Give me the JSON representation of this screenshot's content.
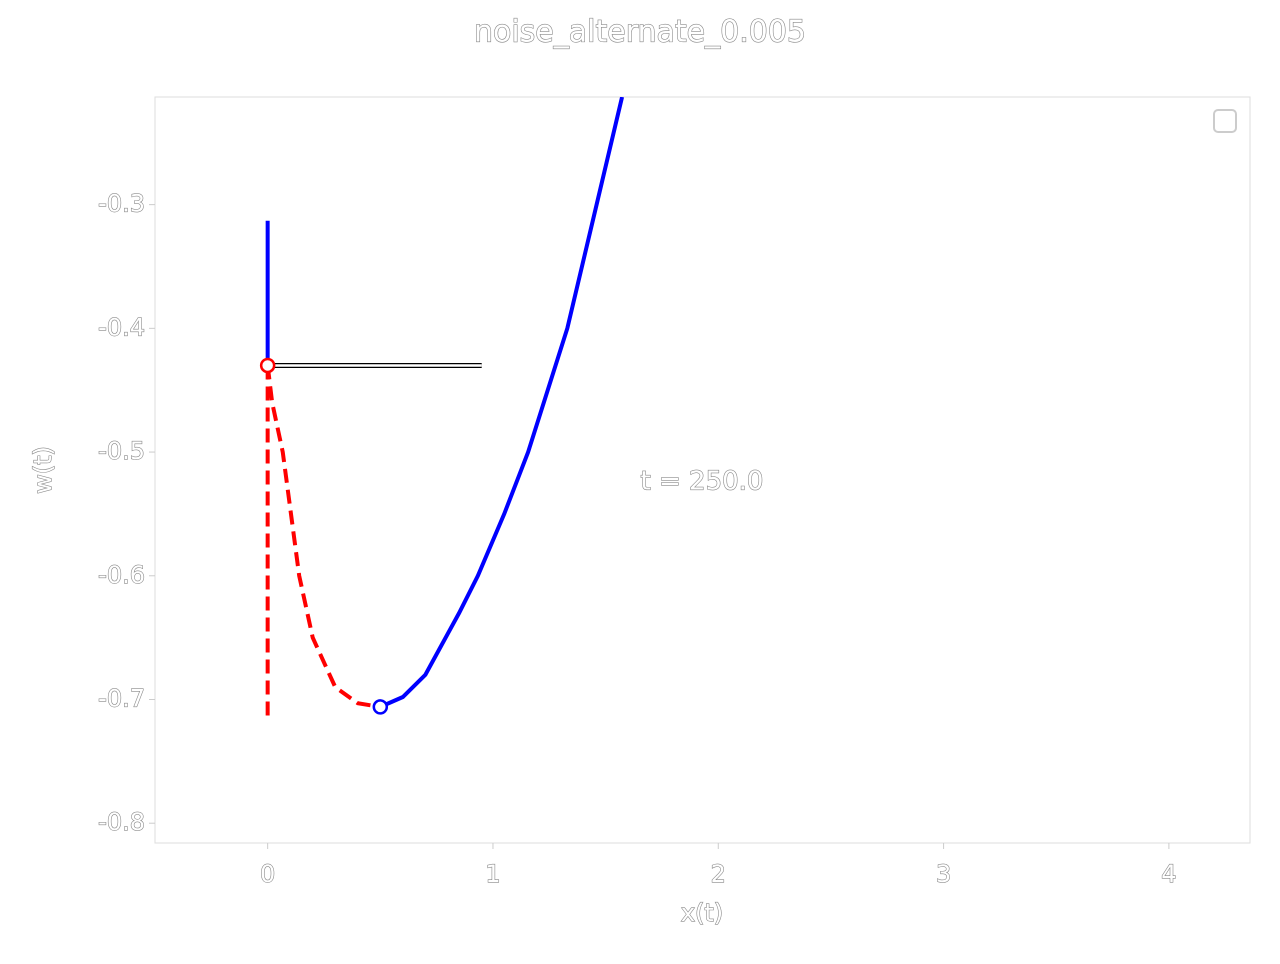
{
  "chart_data": {
    "type": "line",
    "title": "noise_alternate_0.005",
    "x_label": "x(t)",
    "y_label": "w(t)",
    "annotation": "t = 250.0",
    "xlim": [
      -0.5,
      4.36
    ],
    "ylim": [
      -0.816,
      -0.213
    ],
    "xticks": [
      0,
      1,
      2,
      3,
      4
    ],
    "yticks": [
      -0.3,
      -0.4,
      -0.5,
      -0.6,
      -0.7,
      -0.8
    ],
    "series": [
      {
        "color": "#0000ff",
        "dashed": false,
        "x": [
          0.5,
          0.6,
          0.7,
          0.76,
          0.85,
          0.933,
          1.05,
          1.156,
          1.33,
          1.46,
          1.573
        ],
        "values": [
          -0.706,
          -0.698,
          -0.68,
          -0.66,
          -0.63,
          -0.6,
          -0.55,
          -0.5,
          -0.4,
          -0.3,
          -0.213
        ]
      },
      {
        "color": "#0000ff",
        "dashed": false,
        "x": [
          0,
          0
        ],
        "values": [
          -0.313,
          -0.43
        ]
      },
      {
        "color": "#ff0000",
        "dashed": true,
        "x": [
          0,
          0.02,
          0.067,
          0.14,
          0.2,
          0.3,
          0.4,
          0.5
        ],
        "values": [
          -0.43,
          -0.46,
          -0.5,
          -0.6,
          -0.65,
          -0.69,
          -0.703,
          -0.706
        ]
      },
      {
        "color": "#ff0000",
        "dashed": true,
        "x": [
          0,
          0
        ],
        "values": [
          -0.43,
          -0.718
        ]
      },
      {
        "color": "#000000",
        "dashed": false,
        "outlined": true,
        "x": [
          0,
          0.95
        ],
        "values": [
          -0.43,
          -0.43
        ]
      }
    ],
    "points": [
      {
        "color": "#ff0000",
        "x": 0,
        "y": -0.43
      },
      {
        "color": "#0000ff",
        "x": 0.5,
        "y": -0.706
      }
    ]
  }
}
